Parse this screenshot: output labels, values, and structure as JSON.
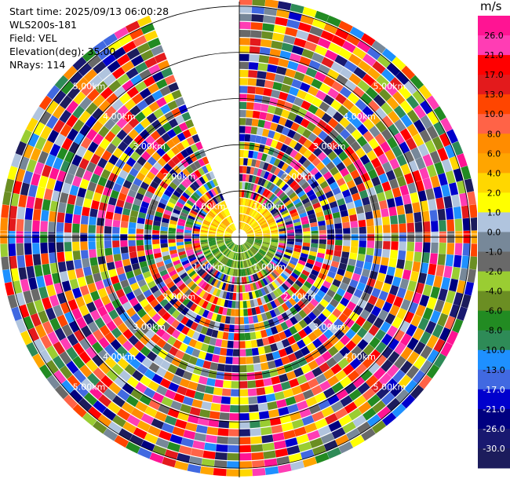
{
  "info": {
    "start_time": "Start time: 2025/09/13 06:00:28",
    "station": "WLS200s-181",
    "field": "Field: VEL",
    "elevation": "Elevation(deg): 35.00",
    "nrays": "NRays: 114"
  },
  "chart_data": {
    "type": "heatmap",
    "projection": "polar-ppi",
    "field": "VEL",
    "units_label": "m/s",
    "range_ring_labels": [
      "1.00km",
      "2.00km",
      "3.00km",
      "4.00km",
      "5.00km"
    ],
    "colorbar": {
      "tick_labels": [
        "26.0",
        "21.0",
        "17.0",
        "13.0",
        "10.0",
        "8.0",
        "6.0",
        "4.0",
        "2.0",
        "1.0",
        "0.0",
        "-1.0",
        "-2.0",
        "-4.0",
        "-6.0",
        "-8.0",
        "-10.0",
        "-13.0",
        "-17.0",
        "-21.0",
        "-26.0",
        "-30.0"
      ],
      "colors": [
        "#ff1493",
        "#ff3db4",
        "#ff0000",
        "#e31a1c",
        "#ff4500",
        "#ff6347",
        "#ff8c00",
        "#ffa500",
        "#ffd700",
        "#ffff00",
        "#b0c4de",
        "#778899",
        "#696969",
        "#9acd32",
        "#6b8e23",
        "#228b22",
        "#2e8b57",
        "#1e90ff",
        "#4169e1",
        "#0000cd",
        "#000080",
        "#191970",
        "#1c1c5c"
      ]
    },
    "gap_azimuth_range_deg": [
      -23,
      0
    ]
  }
}
